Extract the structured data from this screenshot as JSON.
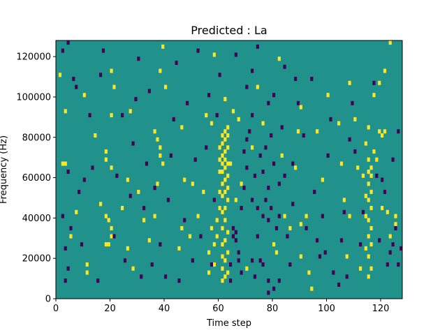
{
  "chart_data": {
    "type": "heatmap",
    "title": "Predicted : La",
    "xlabel": "Time step",
    "ylabel": "Frequency (Hz)",
    "xlim": [
      0,
      128
    ],
    "ylim": [
      0,
      128000
    ],
    "x_ticks": [
      0,
      20,
      40,
      60,
      80,
      100,
      120
    ],
    "x_tick_labels": [
      "0",
      "20",
      "40",
      "60",
      "80",
      "100",
      "120"
    ],
    "y_ticks": [
      0,
      20000,
      40000,
      60000,
      80000,
      100000,
      120000
    ],
    "y_tick_labels": [
      "0",
      "20000",
      "40000",
      "60000",
      "80000",
      "100000",
      "120000"
    ],
    "colormap": "viridis",
    "value_levels": [
      -1,
      0,
      1
    ],
    "colors": {
      "-1": "#440154",
      "0": "#21918c",
      "1": "#fde725"
    },
    "background_value": 0,
    "bin_width_time": 1,
    "bin_height_hz": 2000,
    "cells": [
      [
        61,
        8000,
        1
      ],
      [
        61,
        14000,
        1
      ],
      [
        61,
        20000,
        1
      ],
      [
        61,
        26000,
        1
      ],
      [
        61,
        34000,
        1
      ],
      [
        61,
        42000,
        1
      ],
      [
        61,
        50000,
        1
      ],
      [
        61,
        56000,
        1
      ],
      [
        61,
        62000,
        1
      ],
      [
        61,
        66000,
        1
      ],
      [
        61,
        70000,
        1
      ],
      [
        61,
        76000,
        1
      ],
      [
        61,
        80000,
        1
      ],
      [
        62,
        10000,
        1
      ],
      [
        62,
        18000,
        1
      ],
      [
        62,
        28000,
        1
      ],
      [
        62,
        38000,
        1
      ],
      [
        62,
        44000,
        1
      ],
      [
        62,
        52000,
        1
      ],
      [
        62,
        58000,
        1
      ],
      [
        62,
        64000,
        1
      ],
      [
        62,
        68000,
        1
      ],
      [
        62,
        72000,
        1
      ],
      [
        62,
        78000,
        1
      ],
      [
        62,
        82000,
        1
      ],
      [
        63,
        12000,
        1
      ],
      [
        63,
        22000,
        1
      ],
      [
        63,
        32000,
        1
      ],
      [
        63,
        48000,
        1
      ],
      [
        63,
        54000,
        1
      ],
      [
        63,
        60000,
        1
      ],
      [
        63,
        66000,
        1
      ],
      [
        63,
        74000,
        1
      ],
      [
        63,
        80000,
        1
      ],
      [
        63,
        84000,
        1
      ],
      [
        60,
        44000,
        1
      ],
      [
        60,
        52000,
        1
      ],
      [
        60,
        62000,
        1
      ],
      [
        60,
        68000,
        1
      ],
      [
        60,
        74000,
        1
      ],
      [
        59,
        30000,
        1
      ],
      [
        59,
        38000,
        1
      ],
      [
        58,
        16000,
        1
      ],
      [
        58,
        26000,
        1
      ],
      [
        57,
        34000,
        1
      ],
      [
        56,
        12000,
        1
      ],
      [
        56,
        22000,
        1
      ],
      [
        115,
        10000,
        1
      ],
      [
        115,
        20000,
        1
      ],
      [
        115,
        30000,
        1
      ],
      [
        115,
        38000,
        1
      ],
      [
        115,
        48000,
        1
      ],
      [
        115,
        56000,
        1
      ],
      [
        115,
        62000,
        1
      ],
      [
        115,
        68000,
        1
      ],
      [
        116,
        14000,
        1
      ],
      [
        116,
        26000,
        1
      ],
      [
        116,
        34000,
        1
      ],
      [
        116,
        44000,
        1
      ],
      [
        116,
        52000,
        1
      ],
      [
        116,
        60000,
        1
      ],
      [
        116,
        64000,
        1
      ],
      [
        114,
        24000,
        1
      ],
      [
        114,
        40000,
        1
      ],
      [
        114,
        50000,
        1
      ],
      [
        117,
        72000,
        1
      ],
      [
        112,
        14000,
        1
      ],
      [
        114,
        76000,
        1
      ],
      [
        108,
        106000,
        1
      ],
      [
        119,
        106000,
        1
      ],
      [
        119,
        82000,
        1
      ],
      [
        115,
        84000,
        1
      ],
      [
        2,
        66000,
        1
      ],
      [
        3,
        66000,
        1
      ],
      [
        18,
        26000,
        1
      ],
      [
        19,
        26000,
        1
      ],
      [
        18,
        40000,
        1
      ],
      [
        19,
        38000,
        1
      ],
      [
        20,
        34000,
        1
      ],
      [
        20,
        30000,
        1
      ],
      [
        18,
        72000,
        1
      ],
      [
        18,
        68000,
        1
      ],
      [
        20,
        64000,
        1
      ],
      [
        20,
        90000,
        1
      ],
      [
        21,
        104000,
        1
      ],
      [
        20,
        112000,
        1
      ],
      [
        11,
        16000,
        1
      ],
      [
        11,
        12000,
        1
      ],
      [
        10,
        100000,
        1
      ],
      [
        5,
        30000,
        1
      ],
      [
        3,
        92000,
        1
      ],
      [
        1,
        110000,
        1
      ],
      [
        7,
        42000,
        1
      ],
      [
        14,
        80000,
        1
      ],
      [
        16,
        46000,
        1
      ],
      [
        24,
        44000,
        1
      ],
      [
        26,
        24000,
        1
      ],
      [
        28,
        14000,
        1
      ],
      [
        30,
        52000,
        1
      ],
      [
        32,
        38000,
        1
      ],
      [
        34,
        28000,
        1
      ],
      [
        36,
        40000,
        1
      ],
      [
        37,
        56000,
        1
      ],
      [
        38,
        74000,
        1
      ],
      [
        38,
        70000,
        1
      ],
      [
        39,
        66000,
        1
      ],
      [
        37,
        78000,
        1
      ],
      [
        36,
        82000,
        1
      ],
      [
        40,
        104000,
        1
      ],
      [
        38,
        112000,
        1
      ],
      [
        39,
        124000,
        1
      ],
      [
        45,
        24000,
        1
      ],
      [
        46,
        34000,
        1
      ],
      [
        47,
        58000,
        1
      ],
      [
        46,
        84000,
        1
      ],
      [
        49,
        30000,
        1
      ],
      [
        50,
        56000,
        1
      ],
      [
        52,
        40000,
        1
      ],
      [
        54,
        52000,
        1
      ],
      [
        55,
        90000,
        1
      ],
      [
        57,
        86000,
        1
      ],
      [
        58,
        120000,
        1
      ],
      [
        62,
        98000,
        1
      ],
      [
        64,
        66000,
        1
      ],
      [
        65,
        92000,
        1
      ],
      [
        66,
        48000,
        1
      ],
      [
        68,
        56000,
        1
      ],
      [
        67,
        88000,
        1
      ],
      [
        70,
        14000,
        1
      ],
      [
        72,
        74000,
        1
      ],
      [
        74,
        104000,
        1
      ],
      [
        76,
        86000,
        1
      ],
      [
        80,
        26000,
        1
      ],
      [
        81,
        22000,
        1
      ],
      [
        82,
        118000,
        1
      ],
      [
        83,
        70000,
        1
      ],
      [
        84,
        40000,
        1
      ],
      [
        86,
        34000,
        1
      ],
      [
        88,
        64000,
        1
      ],
      [
        89,
        82000,
        1
      ],
      [
        90,
        94000,
        1
      ],
      [
        90,
        36000,
        1
      ],
      [
        90,
        20000,
        1
      ],
      [
        92,
        40000,
        1
      ],
      [
        93,
        12000,
        1
      ],
      [
        94,
        4000,
        1
      ],
      [
        96,
        82000,
        1
      ],
      [
        98,
        58000,
        1
      ],
      [
        100,
        100000,
        1
      ],
      [
        104,
        86000,
        1
      ],
      [
        105,
        66000,
        1
      ],
      [
        106,
        48000,
        1
      ],
      [
        107,
        20000,
        1
      ],
      [
        108,
        40000,
        1
      ],
      [
        110,
        88000,
        1
      ],
      [
        111,
        64000,
        1
      ],
      [
        113,
        60000,
        1
      ],
      [
        117,
        100000,
        1
      ],
      [
        118,
        68000,
        1
      ],
      [
        120,
        80000,
        1
      ],
      [
        121,
        82000,
        1
      ],
      [
        120,
        44000,
        1
      ],
      [
        122,
        42000,
        1
      ],
      [
        123,
        30000,
        1
      ],
      [
        125,
        36000,
        1
      ],
      [
        125,
        40000,
        1
      ],
      [
        123,
        126000,
        1
      ],
      [
        121,
        112000,
        1
      ],
      [
        27,
        92000,
        1
      ],
      [
        26,
        58000,
        1
      ],
      [
        64,
        8000,
        -1
      ],
      [
        64,
        16000,
        -1
      ],
      [
        65,
        30000,
        -1
      ],
      [
        65,
        34000,
        -1
      ],
      [
        66,
        28000,
        -1
      ],
      [
        66,
        32000,
        -1
      ],
      [
        67,
        18000,
        -1
      ],
      [
        67,
        22000,
        -1
      ],
      [
        68,
        12000,
        -1
      ],
      [
        68,
        44000,
        -1
      ],
      [
        69,
        54000,
        -1
      ],
      [
        69,
        72000,
        -1
      ],
      [
        70,
        64000,
        -1
      ],
      [
        70,
        78000,
        -1
      ],
      [
        71,
        82000,
        -1
      ],
      [
        72,
        18000,
        -1
      ],
      [
        72,
        48000,
        -1
      ],
      [
        72,
        90000,
        -1
      ],
      [
        73,
        10000,
        -1
      ],
      [
        73,
        60000,
        -1
      ],
      [
        74,
        30000,
        -1
      ],
      [
        74,
        44000,
        -1
      ],
      [
        75,
        18000,
        -1
      ],
      [
        75,
        70000,
        -1
      ],
      [
        76,
        16000,
        -1
      ],
      [
        76,
        62000,
        -1
      ],
      [
        77,
        48000,
        -1
      ],
      [
        77,
        74000,
        -1
      ],
      [
        78,
        8000,
        -1
      ],
      [
        78,
        2000,
        -1
      ],
      [
        78,
        38000,
        -1
      ],
      [
        78,
        54000,
        -1
      ],
      [
        79,
        44000,
        -1
      ],
      [
        79,
        80000,
        -1
      ],
      [
        80,
        4000,
        -1
      ],
      [
        80,
        66000,
        -1
      ],
      [
        81,
        34000,
        -1
      ],
      [
        82,
        40000,
        -1
      ],
      [
        82,
        8000,
        -1
      ],
      [
        83,
        84000,
        -1
      ],
      [
        84,
        60000,
        -1
      ],
      [
        85,
        30000,
        -1
      ],
      [
        86,
        16000,
        -1
      ],
      [
        87,
        46000,
        -1
      ],
      [
        87,
        66000,
        -1
      ],
      [
        88,
        108000,
        -1
      ],
      [
        89,
        96000,
        -1
      ],
      [
        91,
        80000,
        -1
      ],
      [
        92,
        34000,
        -1
      ],
      [
        94,
        108000,
        -1
      ],
      [
        95,
        52000,
        -1
      ],
      [
        96,
        28000,
        -1
      ],
      [
        97,
        20000,
        -1
      ],
      [
        98,
        40000,
        -1
      ],
      [
        99,
        22000,
        -1
      ],
      [
        100,
        70000,
        -1
      ],
      [
        101,
        88000,
        -1
      ],
      [
        102,
        12000,
        -1
      ],
      [
        104,
        6000,
        -1
      ],
      [
        105,
        28000,
        -1
      ],
      [
        106,
        42000,
        -1
      ],
      [
        107,
        10000,
        -1
      ],
      [
        108,
        78000,
        -1
      ],
      [
        109,
        96000,
        -1
      ],
      [
        110,
        72000,
        -1
      ],
      [
        112,
        26000,
        -1
      ],
      [
        113,
        42000,
        -1
      ],
      [
        117,
        106000,
        -1
      ],
      [
        118,
        60000,
        -1
      ],
      [
        119,
        28000,
        -1
      ],
      [
        120,
        58000,
        -1
      ],
      [
        121,
        52000,
        -1
      ],
      [
        122,
        16000,
        -1
      ],
      [
        123,
        22000,
        -1
      ],
      [
        124,
        26000,
        -1
      ],
      [
        125,
        34000,
        -1
      ],
      [
        126,
        16000,
        -1
      ],
      [
        127,
        24000,
        -1
      ],
      [
        126,
        82000,
        -1
      ],
      [
        124,
        68000,
        -1
      ],
      [
        3,
        8000,
        -1
      ],
      [
        4,
        14000,
        -1
      ],
      [
        3,
        24000,
        -1
      ],
      [
        5,
        34000,
        -1
      ],
      [
        2,
        40000,
        -1
      ],
      [
        4,
        62000,
        -1
      ],
      [
        7,
        104000,
        -1
      ],
      [
        6,
        108000,
        -1
      ],
      [
        4,
        126000,
        -1
      ],
      [
        2,
        122000,
        -1
      ],
      [
        8,
        52000,
        -1
      ],
      [
        9,
        26000,
        -1
      ],
      [
        10,
        58000,
        -1
      ],
      [
        12,
        90000,
        -1
      ],
      [
        13,
        64000,
        -1
      ],
      [
        15,
        8000,
        -1
      ],
      [
        16,
        110000,
        -1
      ],
      [
        17,
        122000,
        -1
      ],
      [
        21,
        30000,
        -1
      ],
      [
        22,
        60000,
        -1
      ],
      [
        24,
        90000,
        -1
      ],
      [
        25,
        18000,
        -1
      ],
      [
        27,
        50000,
        -1
      ],
      [
        28,
        76000,
        -1
      ],
      [
        29,
        98000,
        -1
      ],
      [
        30,
        118000,
        -1
      ],
      [
        31,
        10000,
        -1
      ],
      [
        32,
        44000,
        -1
      ],
      [
        33,
        66000,
        -1
      ],
      [
        34,
        102000,
        -1
      ],
      [
        35,
        16000,
        -1
      ],
      [
        36,
        54000,
        -1
      ],
      [
        38,
        26000,
        -1
      ],
      [
        40,
        10000,
        -1
      ],
      [
        41,
        48000,
        -1
      ],
      [
        42,
        70000,
        -1
      ],
      [
        43,
        88000,
        -1
      ],
      [
        44,
        116000,
        -1
      ],
      [
        45,
        8000,
        -1
      ],
      [
        47,
        38000,
        -1
      ],
      [
        48,
        96000,
        -1
      ],
      [
        50,
        18000,
        -1
      ],
      [
        51,
        68000,
        -1
      ],
      [
        52,
        122000,
        -1
      ],
      [
        53,
        30000,
        -1
      ],
      [
        55,
        74000,
        -1
      ],
      [
        56,
        100000,
        -1
      ],
      [
        57,
        16000,
        -1
      ],
      [
        58,
        48000,
        -1
      ],
      [
        59,
        90000,
        -1
      ],
      [
        60,
        110000,
        -1
      ],
      [
        66,
        120000,
        -1
      ],
      [
        70,
        104000,
        -1
      ],
      [
        72,
        112000,
        -1
      ],
      [
        74,
        124000,
        -1
      ],
      [
        76,
        40000,
        -1
      ],
      [
        78,
        96000,
        -1
      ],
      [
        80,
        100000,
        -1
      ],
      [
        82,
        56000,
        -1
      ],
      [
        84,
        114000,
        -1
      ]
    ]
  }
}
